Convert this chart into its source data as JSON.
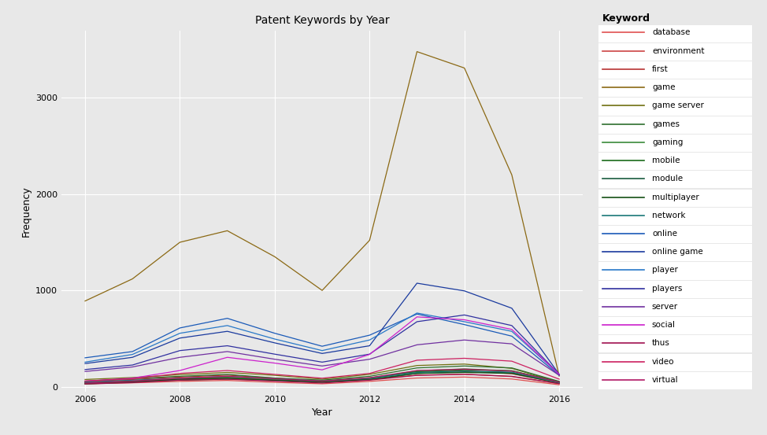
{
  "title": "Patent Keywords by Year",
  "xlabel": "Year",
  "ylabel": "Frequency",
  "years": [
    2006,
    2007,
    2008,
    2009,
    2010,
    2011,
    2012,
    2013,
    2014,
    2015,
    2016
  ],
  "keywords": {
    "database": [
      30,
      40,
      55,
      65,
      45,
      30,
      55,
      90,
      100,
      80,
      20
    ],
    "environment": [
      45,
      60,
      80,
      95,
      70,
      50,
      75,
      120,
      130,
      105,
      30
    ],
    "first": [
      55,
      75,
      100,
      120,
      88,
      60,
      92,
      155,
      165,
      135,
      38
    ],
    "game": [
      890,
      1120,
      1500,
      1620,
      1350,
      1000,
      1520,
      3480,
      3310,
      2200,
      110
    ],
    "game server": [
      75,
      95,
      125,
      148,
      118,
      78,
      128,
      220,
      235,
      190,
      48
    ],
    "games": [
      58,
      85,
      108,
      128,
      90,
      68,
      108,
      195,
      215,
      195,
      55
    ],
    "gaming": [
      38,
      55,
      88,
      98,
      78,
      48,
      88,
      165,
      185,
      165,
      48
    ],
    "mobile": [
      28,
      48,
      68,
      78,
      68,
      58,
      88,
      155,
      175,
      165,
      52
    ],
    "module": [
      38,
      52,
      72,
      88,
      68,
      48,
      78,
      138,
      155,
      145,
      42
    ],
    "multiplayer": [
      38,
      52,
      78,
      88,
      63,
      48,
      72,
      138,
      148,
      138,
      38
    ],
    "network": [
      48,
      68,
      88,
      108,
      83,
      58,
      88,
      148,
      162,
      152,
      42
    ],
    "online": [
      300,
      365,
      610,
      710,
      555,
      420,
      535,
      755,
      645,
      525,
      118
    ],
    "online game": [
      240,
      305,
      505,
      575,
      455,
      345,
      425,
      1075,
      995,
      815,
      128
    ],
    "player": [
      255,
      335,
      555,
      635,
      495,
      375,
      485,
      765,
      675,
      575,
      128
    ],
    "players": [
      178,
      225,
      375,
      425,
      338,
      255,
      338,
      675,
      745,
      635,
      128
    ],
    "server": [
      158,
      205,
      305,
      365,
      285,
      215,
      285,
      435,
      485,
      445,
      118
    ],
    "social": [
      58,
      88,
      168,
      305,
      245,
      175,
      335,
      725,
      695,
      595,
      128
    ],
    "thus": [
      28,
      42,
      68,
      78,
      58,
      38,
      68,
      118,
      128,
      108,
      32
    ],
    "video": [
      58,
      82,
      138,
      168,
      128,
      88,
      138,
      275,
      295,
      265,
      78
    ],
    "virtual": [
      38,
      58,
      88,
      108,
      83,
      58,
      93,
      168,
      182,
      162,
      48
    ]
  },
  "colors": {
    "database": "#e05050",
    "environment": "#cc4444",
    "first": "#b83232",
    "game": "#8B6914",
    "game server": "#707010",
    "games": "#2d6e2d",
    "gaming": "#3a8a3a",
    "mobile": "#1a6b1a",
    "module": "#1a5c40",
    "multiplayer": "#145014",
    "network": "#1a7878",
    "online": "#1a5ab8",
    "online game": "#1a3a9e",
    "player": "#2878c8",
    "players": "#3030a0",
    "server": "#7030a0",
    "social": "#cc20cc",
    "thus": "#a01050",
    "video": "#cc2060",
    "virtual": "#b01865"
  },
  "background_color": "#e8e8e8",
  "plot_bg_color": "#e8e8e8",
  "grid_color": "#ffffff",
  "legend_title": "Keyword",
  "legend_bg": "#f0f0f0",
  "ylim": [
    -50,
    3700
  ],
  "yticks": [
    0,
    1000,
    2000,
    3000
  ]
}
